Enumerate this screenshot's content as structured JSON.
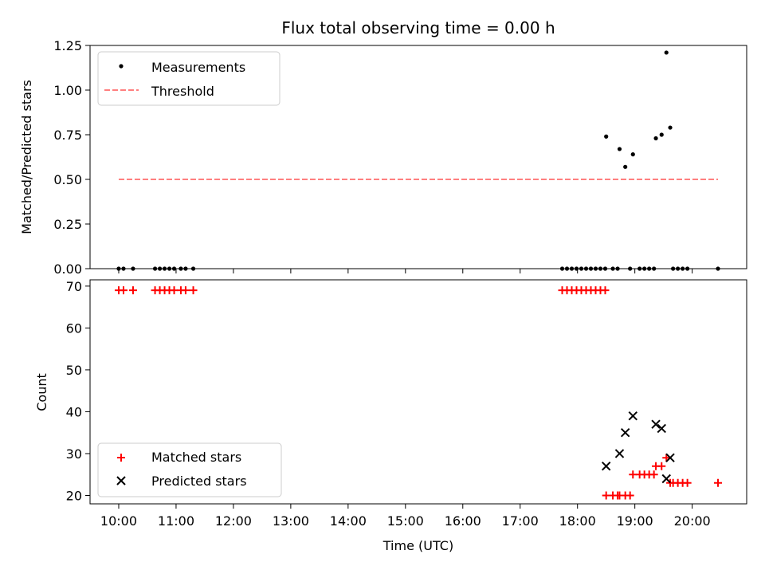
{
  "chart_data": [
    {
      "type": "scatter",
      "title": "Flux total observing time = 0.00 h",
      "ylabel": "Matched/Predicted stars",
      "ylim": [
        0,
        1.25
      ],
      "yticks": [
        "0.00",
        "0.25",
        "0.50",
        "0.75",
        "1.00",
        "1.25"
      ],
      "legend_position": "upper-left",
      "series": [
        {
          "name": "Measurements",
          "marker": "dot",
          "color": "#000000",
          "points": [
            [
              "10:00",
              0
            ],
            [
              "10:05",
              0
            ],
            [
              "10:15",
              0
            ],
            [
              "10:38",
              0
            ],
            [
              "10:43",
              0
            ],
            [
              "10:48",
              0
            ],
            [
              "10:53",
              0
            ],
            [
              "10:58",
              0
            ],
            [
              "11:05",
              0
            ],
            [
              "11:10",
              0
            ],
            [
              "11:18",
              0
            ],
            [
              "17:44",
              0
            ],
            [
              "17:49",
              0
            ],
            [
              "17:54",
              0
            ],
            [
              "17:59",
              0
            ],
            [
              "18:04",
              0
            ],
            [
              "18:09",
              0
            ],
            [
              "18:14",
              0
            ],
            [
              "18:19",
              0
            ],
            [
              "18:24",
              0
            ],
            [
              "18:29",
              0
            ],
            [
              "18:30",
              0.74
            ],
            [
              "18:37",
              0
            ],
            [
              "18:42",
              0
            ],
            [
              "18:44",
              0.67
            ],
            [
              "18:50",
              0.57
            ],
            [
              "18:55",
              0
            ],
            [
              "18:58",
              0.64
            ],
            [
              "19:05",
              0
            ],
            [
              "19:10",
              0
            ],
            [
              "19:15",
              0
            ],
            [
              "19:20",
              0
            ],
            [
              "19:22",
              0.73
            ],
            [
              "19:28",
              0.75
            ],
            [
              "19:33",
              1.21
            ],
            [
              "19:37",
              0.79
            ],
            [
              "19:40",
              0
            ],
            [
              "19:45",
              0
            ],
            [
              "19:50",
              0
            ],
            [
              "19:55",
              0
            ],
            [
              "20:27",
              0
            ]
          ]
        },
        {
          "name": "Threshold",
          "style": "dashed",
          "color": "#ff7f7f",
          "points": [
            [
              "10:00",
              0.5
            ],
            [
              "20:27",
              0.5
            ]
          ]
        }
      ]
    },
    {
      "type": "scatter",
      "xlabel": "Time (UTC)",
      "ylabel": "Count",
      "ylim": [
        18,
        71.5
      ],
      "yticks": [
        "20",
        "30",
        "40",
        "50",
        "60",
        "70"
      ],
      "xticks": [
        "10:00",
        "11:00",
        "12:00",
        "13:00",
        "14:00",
        "15:00",
        "16:00",
        "17:00",
        "18:00",
        "19:00",
        "20:00"
      ],
      "x_range_hours": [
        "09:30",
        "20:57"
      ],
      "legend_position": "lower-left",
      "series": [
        {
          "name": "Matched stars",
          "marker": "plus",
          "color": "#ff0000",
          "points": [
            [
              "10:00",
              69
            ],
            [
              "10:05",
              69
            ],
            [
              "10:15",
              69
            ],
            [
              "10:38",
              69
            ],
            [
              "10:43",
              69
            ],
            [
              "10:48",
              69
            ],
            [
              "10:53",
              69
            ],
            [
              "10:58",
              69
            ],
            [
              "11:05",
              69
            ],
            [
              "11:10",
              69
            ],
            [
              "11:18",
              69
            ],
            [
              "17:44",
              69
            ],
            [
              "17:49",
              69
            ],
            [
              "17:54",
              69
            ],
            [
              "17:59",
              69
            ],
            [
              "18:04",
              69
            ],
            [
              "18:09",
              69
            ],
            [
              "18:14",
              69
            ],
            [
              "18:19",
              69
            ],
            [
              "18:24",
              69
            ],
            [
              "18:29",
              69
            ],
            [
              "18:30",
              20
            ],
            [
              "18:37",
              20
            ],
            [
              "18:42",
              20
            ],
            [
              "18:44",
              20
            ],
            [
              "18:50",
              20
            ],
            [
              "18:55",
              20
            ],
            [
              "18:58",
              25
            ],
            [
              "19:05",
              25
            ],
            [
              "19:10",
              25
            ],
            [
              "19:15",
              25
            ],
            [
              "19:20",
              25
            ],
            [
              "19:22",
              27
            ],
            [
              "19:28",
              27
            ],
            [
              "19:33",
              29
            ],
            [
              "19:37",
              23
            ],
            [
              "19:40",
              23
            ],
            [
              "19:45",
              23
            ],
            [
              "19:50",
              23
            ],
            [
              "19:55",
              23
            ],
            [
              "20:27",
              23
            ]
          ]
        },
        {
          "name": "Predicted stars",
          "marker": "x",
          "color": "#000000",
          "points": [
            [
              "18:30",
              27
            ],
            [
              "18:44",
              30
            ],
            [
              "18:50",
              35
            ],
            [
              "18:58",
              39
            ],
            [
              "19:22",
              37
            ],
            [
              "19:28",
              36
            ],
            [
              "19:33",
              24
            ],
            [
              "19:37",
              29
            ]
          ]
        }
      ]
    }
  ]
}
